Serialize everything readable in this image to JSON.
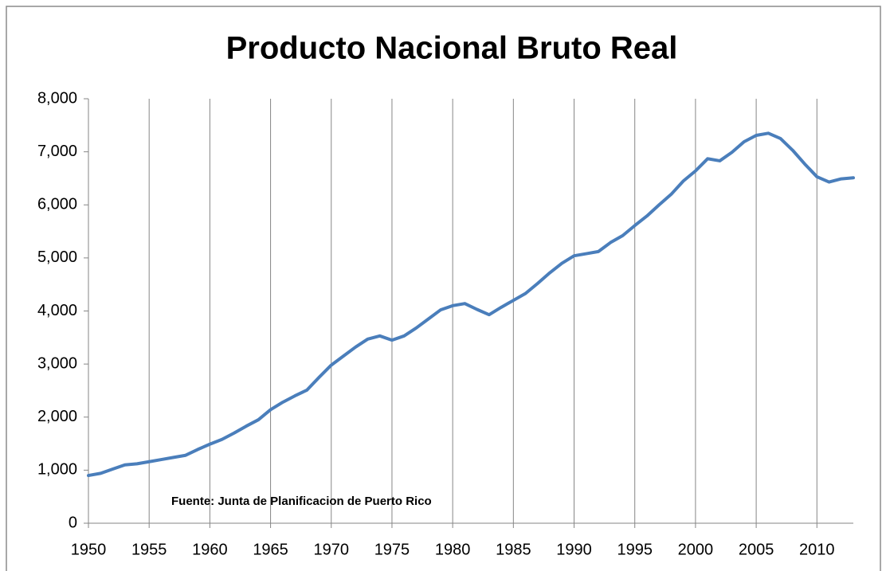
{
  "chart_data": {
    "type": "line",
    "title": "Producto Nacional Bruto Real",
    "annotation": "Fuente: Junta de Planificacion de Puerto Rico",
    "x": [
      1950,
      1951,
      1952,
      1953,
      1954,
      1955,
      1956,
      1957,
      1958,
      1959,
      1960,
      1961,
      1962,
      1963,
      1964,
      1965,
      1966,
      1967,
      1968,
      1969,
      1970,
      1971,
      1972,
      1973,
      1974,
      1975,
      1976,
      1977,
      1978,
      1979,
      1980,
      1981,
      1982,
      1983,
      1984,
      1985,
      1986,
      1987,
      1988,
      1989,
      1990,
      1991,
      1992,
      1993,
      1994,
      1995,
      1996,
      1997,
      1998,
      1999,
      2000,
      2001,
      2002,
      2003,
      2004,
      2005,
      2006,
      2007,
      2008,
      2009,
      2010,
      2011,
      2012,
      2013
    ],
    "series": [
      {
        "color": "#4a7ebb",
        "values": [
          900,
          940,
          1020,
          1100,
          1120,
          1160,
          1200,
          1240,
          1280,
          1390,
          1490,
          1580,
          1700,
          1830,
          1950,
          2140,
          2280,
          2400,
          2510,
          2750,
          2980,
          3150,
          3320,
          3470,
          3530,
          3450,
          3530,
          3680,
          3850,
          4020,
          4100,
          4140,
          4030,
          3930,
          4070,
          4200,
          4330,
          4520,
          4720,
          4900,
          5040,
          5080,
          5120,
          5290,
          5420,
          5610,
          5790,
          6000,
          6200,
          6450,
          6640,
          6870,
          6830,
          6990,
          7190,
          7310,
          7350,
          7250,
          7030,
          6770,
          6530,
          6430,
          6490,
          6510
        ]
      }
    ],
    "xlim": [
      1950,
      2013
    ],
    "xticks": [
      1950,
      1955,
      1960,
      1965,
      1970,
      1975,
      1980,
      1985,
      1990,
      1995,
      2000,
      2005,
      2010
    ],
    "ylim": [
      0,
      8000
    ],
    "yticks": [
      0,
      {
        "value": 1000,
        "label": "1,000"
      },
      {
        "value": 2000,
        "label": "2,000"
      },
      {
        "value": 3000,
        "label": "3,000"
      },
      {
        "value": 4000,
        "label": "4,000"
      },
      {
        "value": 5000,
        "label": "5,000"
      },
      {
        "value": 6000,
        "label": "6,000"
      },
      {
        "value": 7000,
        "label": "7,000"
      },
      {
        "value": 8000,
        "label": "8,000"
      }
    ],
    "grid_x": true
  }
}
